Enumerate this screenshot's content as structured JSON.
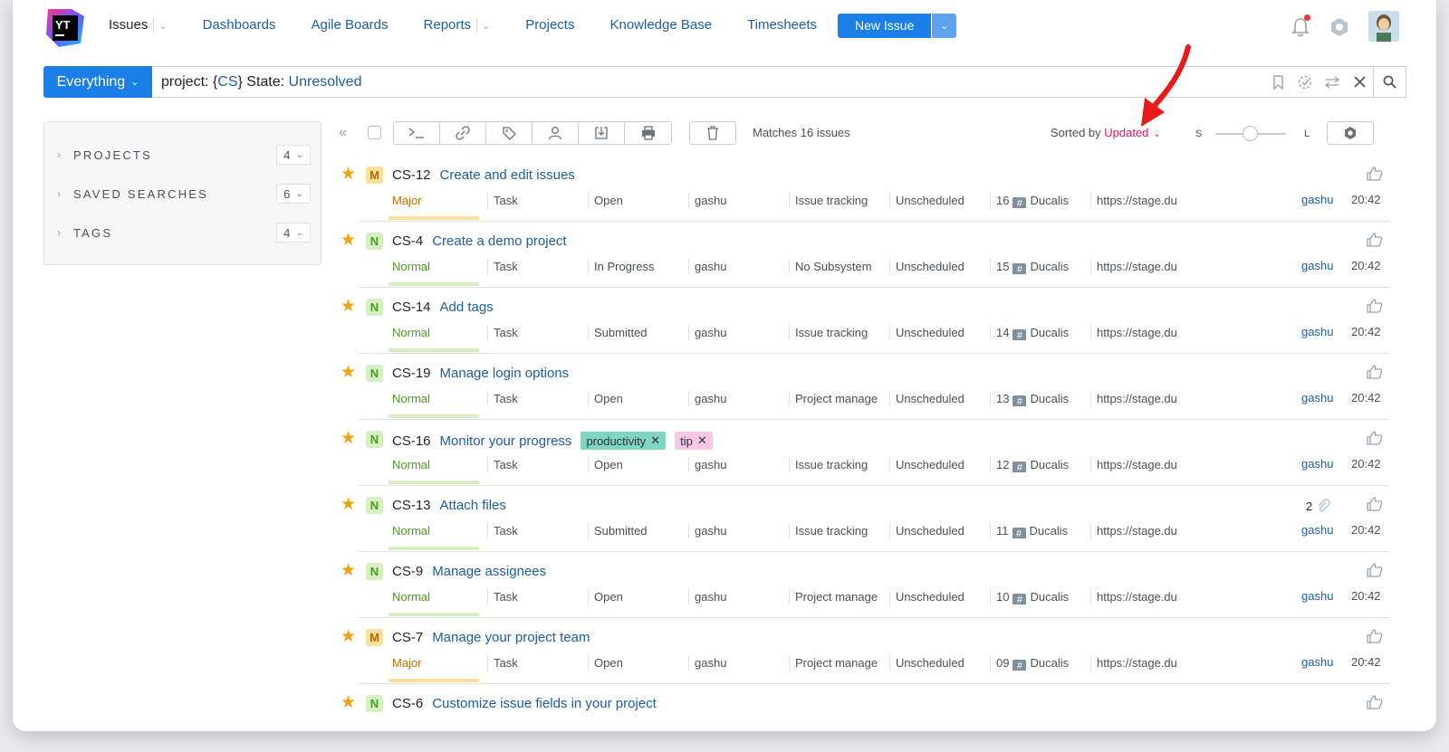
{
  "header": {
    "logo_text": "YT",
    "nav": [
      {
        "label": "Issues",
        "active": true,
        "has_dropdown": true
      },
      {
        "label": "Dashboards"
      },
      {
        "label": "Agile Boards"
      },
      {
        "label": "Reports",
        "has_dropdown": true
      },
      {
        "label": "Projects"
      },
      {
        "label": "Knowledge Base"
      },
      {
        "label": "Timesheets"
      }
    ],
    "new_issue_label": "New Issue",
    "icons": [
      "bell-icon",
      "hexagon-settings-icon",
      "avatar"
    ],
    "accent_color": "#1a7fe6"
  },
  "search": {
    "context_label": "Everything",
    "query_parts": [
      {
        "text": "project: {",
        "type": "kw"
      },
      {
        "text": "CS",
        "type": "val"
      },
      {
        "text": "} State: ",
        "type": "kw"
      },
      {
        "text": "Unresolved",
        "type": "val"
      }
    ]
  },
  "sidebar": {
    "items": [
      {
        "label": "PROJECTS",
        "count": "4"
      },
      {
        "label": "SAVED SEARCHES",
        "count": "6"
      },
      {
        "label": "TAGS",
        "count": "4"
      }
    ]
  },
  "toolbar": {
    "matches": "Matches 16 issues",
    "sorted_prefix": "Sorted by ",
    "sorted_value": "Updated",
    "size_small": "S",
    "size_large": "L",
    "sort_color": "#e8175d"
  },
  "issues": [
    {
      "priority_letter": "M",
      "priority": "Major",
      "key": "CS-12",
      "summary": "Create and edit issues",
      "type": "Task",
      "state": "Open",
      "assignee": "gashu",
      "subsystem": "Issue tracking",
      "fix": "Unscheduled",
      "num": "16",
      "project_field": "Ducalis",
      "url": "https://stage.du",
      "reporter": "gashu",
      "time": "20:42",
      "tags": [],
      "attachments": ""
    },
    {
      "priority_letter": "N",
      "priority": "Normal",
      "key": "CS-4",
      "summary": "Create a demo project",
      "type": "Task",
      "state": "In Progress",
      "assignee": "gashu",
      "subsystem": "No Subsystem",
      "fix": "Unscheduled",
      "num": "15",
      "project_field": "Ducalis",
      "url": "https://stage.du",
      "reporter": "gashu",
      "time": "20:42",
      "tags": [],
      "attachments": ""
    },
    {
      "priority_letter": "N",
      "priority": "Normal",
      "key": "CS-14",
      "summary": "Add tags",
      "type": "Task",
      "state": "Submitted",
      "assignee": "gashu",
      "subsystem": "Issue tracking",
      "fix": "Unscheduled",
      "num": "14",
      "project_field": "Ducalis",
      "url": "https://stage.du",
      "reporter": "gashu",
      "time": "20:42",
      "tags": [],
      "attachments": ""
    },
    {
      "priority_letter": "N",
      "priority": "Normal",
      "key": "CS-19",
      "summary": "Manage login options",
      "type": "Task",
      "state": "Open",
      "assignee": "gashu",
      "subsystem": "Project manage",
      "fix": "Unscheduled",
      "num": "13",
      "project_field": "Ducalis",
      "url": "https://stage.du",
      "reporter": "gashu",
      "time": "20:42",
      "tags": [],
      "attachments": ""
    },
    {
      "priority_letter": "N",
      "priority": "Normal",
      "key": "CS-16",
      "summary": "Monitor your progress",
      "type": "Task",
      "state": "Open",
      "assignee": "gashu",
      "subsystem": "Issue tracking",
      "fix": "Unscheduled",
      "num": "12",
      "project_field": "Ducalis",
      "url": "https://stage.du",
      "reporter": "gashu",
      "time": "20:42",
      "tags": [
        {
          "label": "productivity",
          "cls": "productivity"
        },
        {
          "label": "tip",
          "cls": "tip"
        }
      ],
      "attachments": ""
    },
    {
      "priority_letter": "N",
      "priority": "Normal",
      "key": "CS-13",
      "summary": "Attach files",
      "type": "Task",
      "state": "Submitted",
      "assignee": "gashu",
      "subsystem": "Issue tracking",
      "fix": "Unscheduled",
      "num": "11",
      "project_field": "Ducalis",
      "url": "https://stage.du",
      "reporter": "gashu",
      "time": "20:42",
      "tags": [],
      "attachments": "2"
    },
    {
      "priority_letter": "N",
      "priority": "Normal",
      "key": "CS-9",
      "summary": "Manage assignees",
      "type": "Task",
      "state": "Open",
      "assignee": "gashu",
      "subsystem": "Project manage",
      "fix": "Unscheduled",
      "num": "10",
      "project_field": "Ducalis",
      "url": "https://stage.du",
      "reporter": "gashu",
      "time": "20:42",
      "tags": [],
      "attachments": ""
    },
    {
      "priority_letter": "M",
      "priority": "Major",
      "key": "CS-7",
      "summary": "Manage your project team",
      "type": "Task",
      "state": "Open",
      "assignee": "gashu",
      "subsystem": "Project manage",
      "fix": "Unscheduled",
      "num": "09",
      "project_field": "Ducalis",
      "url": "https://stage.du",
      "reporter": "gashu",
      "time": "20:42",
      "tags": [],
      "attachments": ""
    },
    {
      "priority_letter": "N",
      "priority": "",
      "key": "CS-6",
      "summary": "Customize issue fields in your project",
      "type": "",
      "state": "",
      "assignee": "",
      "subsystem": "",
      "fix": "",
      "num": "",
      "project_field": "",
      "url": "",
      "reporter": "",
      "time": "",
      "tags": [],
      "attachments": ""
    }
  ]
}
